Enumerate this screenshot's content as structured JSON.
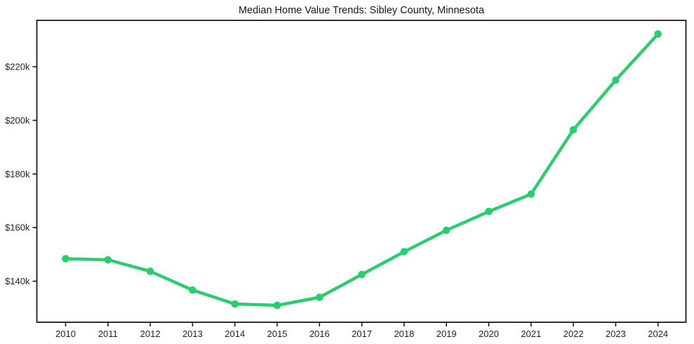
{
  "page": {
    "background_color": "#ffffff"
  },
  "chart_data": {
    "type": "line",
    "title": "Median Home Value Trends: Sibley County, Minnesota",
    "x": [
      2010,
      2011,
      2012,
      2013,
      2014,
      2015,
      2016,
      2017,
      2018,
      2019,
      2020,
      2021,
      2022,
      2023,
      2024
    ],
    "values": [
      148400,
      148000,
      143700,
      136700,
      131500,
      131000,
      134000,
      142500,
      151000,
      159000,
      166000,
      172500,
      196500,
      215000,
      232200
    ],
    "xtick_labels": [
      "2010",
      "2011",
      "2012",
      "2013",
      "2014",
      "2015",
      "2016",
      "2017",
      "2018",
      "2019",
      "2020",
      "2021",
      "2022",
      "2023",
      "2024"
    ],
    "ytick_values": [
      140000,
      160000,
      180000,
      200000,
      220000
    ],
    "ytick_labels": [
      "$140k",
      "$160k",
      "$180k",
      "$200k",
      "$220k"
    ],
    "xlim": [
      2009.32,
      2024.66
    ],
    "ylim": [
      124700,
      237300
    ],
    "xlabel": "",
    "ylabel": "",
    "grid": false,
    "legend_position": "none",
    "line_color": "#2ecc71",
    "marker": "circle",
    "marker_color": "#2ecc71",
    "spine_color": "#1a1a24",
    "text_color": "#1f1f28"
  }
}
